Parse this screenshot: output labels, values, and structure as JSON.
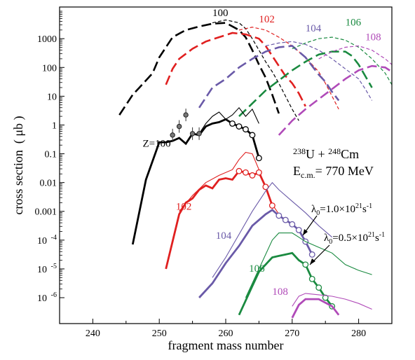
{
  "chart_data": {
    "type": "line",
    "xlabel": "fragment mass number",
    "ylabel": "cross section  ( μb )",
    "xlim": [
      235,
      285
    ],
    "ylim_log10": [
      -6.9,
      4.1
    ],
    "log_y": true,
    "x_ticks": [
      240,
      250,
      260,
      270,
      280
    ],
    "y_ticks": [
      {
        "exp": 3,
        "label": "1000"
      },
      {
        "exp": 2,
        "label": "100"
      },
      {
        "exp": 1,
        "label": "10"
      },
      {
        "exp": 0,
        "label": "1"
      },
      {
        "exp": -1,
        "label": "0.1"
      },
      {
        "exp": -2,
        "label": "0.01"
      },
      {
        "exp": -3,
        "label": "0.001"
      },
      {
        "exp": -4,
        "label": "10",
        "sup": "-4"
      },
      {
        "exp": -5,
        "label": "10",
        "sup": "-5"
      },
      {
        "exp": -6,
        "label": "10",
        "sup": "-6"
      }
    ],
    "reaction": {
      "a1": "238",
      "s1": "U",
      "plus": " + ",
      "a2": "248",
      "s2": "Cm"
    },
    "energy": {
      "E": "E",
      "sub": "c.m.",
      "rest": "= 770 MeV"
    },
    "annotations": {
      "lambda1": {
        "pre": "λ",
        "sub": "0",
        "mid": "=1.0×10",
        "sup": "21",
        "post": "s",
        "sup2": "-1"
      },
      "lambda2": {
        "pre": "λ",
        "sub": "0",
        "mid": "=0.5×10",
        "sup": "21",
        "post": "s",
        "sup2": "-1"
      }
    },
    "series": [
      {
        "name": "100",
        "color": "#000000",
        "label_primary": "100",
        "primary": [
          [
            244,
            0.35
          ],
          [
            246,
            1.05
          ],
          [
            247,
            1.3
          ],
          [
            249,
            1.8
          ],
          [
            250,
            2.35
          ],
          [
            251,
            2.7
          ],
          [
            252,
            3.05
          ],
          [
            254,
            3.3
          ],
          [
            256,
            3.42
          ],
          [
            258,
            3.52
          ],
          [
            260,
            3.55
          ],
          [
            262,
            3.3
          ],
          [
            263,
            3.05
          ],
          [
            264,
            2.6
          ],
          [
            265,
            2.1
          ],
          [
            266,
            1.65
          ],
          [
            267,
            1.05
          ],
          [
            268,
            0.4
          ]
        ],
        "secondary": [
          [
            258,
            3.55
          ],
          [
            260,
            3.65
          ],
          [
            262,
            3.55
          ],
          [
            263,
            3.35
          ],
          [
            264,
            3.0
          ],
          [
            265,
            2.6
          ],
          [
            266,
            2.2
          ],
          [
            267,
            1.85
          ],
          [
            268,
            1.45
          ],
          [
            269,
            1.0
          ],
          [
            270,
            0.55
          ],
          [
            271,
            0.15
          ]
        ]
      },
      {
        "name": "102",
        "color": "#e02020",
        "label_primary": "102",
        "primary": [
          [
            251,
            1.4
          ],
          [
            252,
            1.95
          ],
          [
            253,
            2.3
          ],
          [
            255,
            2.65
          ],
          [
            257,
            2.9
          ],
          [
            259,
            3.05
          ],
          [
            261,
            3.2
          ],
          [
            263,
            3.15
          ],
          [
            265,
            3.0
          ],
          [
            266,
            2.75
          ],
          [
            267,
            2.4
          ],
          [
            268,
            2.05
          ],
          [
            269,
            1.7
          ],
          [
            270,
            1.45
          ],
          [
            271,
            1.1
          ],
          [
            272,
            0.65
          ]
        ],
        "secondary": [
          [
            262,
            3.3
          ],
          [
            264,
            3.4
          ],
          [
            266,
            3.3
          ],
          [
            268,
            3.05
          ],
          [
            270,
            2.75
          ],
          [
            272,
            2.35
          ],
          [
            274,
            1.85
          ],
          [
            275,
            1.45
          ],
          [
            276,
            1.0
          ],
          [
            277,
            0.55
          ]
        ]
      },
      {
        "name": "104",
        "color": "#6a5aa8",
        "label_primary": "104",
        "primary": [
          [
            256,
            0.6
          ],
          [
            258,
            1.3
          ],
          [
            260,
            1.6
          ],
          [
            262,
            2.0
          ],
          [
            264,
            2.3
          ],
          [
            266,
            2.55
          ],
          [
            268,
            2.7
          ],
          [
            270,
            2.75
          ],
          [
            271,
            2.55
          ],
          [
            272,
            2.35
          ],
          [
            273,
            2.05
          ],
          [
            274,
            1.75
          ],
          [
            275,
            1.5
          ],
          [
            276,
            1.15
          ],
          [
            277,
            0.85
          ]
        ],
        "secondary": [
          [
            266,
            2.75
          ],
          [
            268,
            2.85
          ],
          [
            270,
            2.9
          ],
          [
            272,
            2.8
          ],
          [
            274,
            2.6
          ],
          [
            276,
            2.3
          ],
          [
            278,
            1.95
          ],
          [
            280,
            1.6
          ],
          [
            281,
            1.25
          ],
          [
            282,
            0.85
          ]
        ]
      },
      {
        "name": "106",
        "color": "#1a8a40",
        "label_primary": "106",
        "primary": [
          [
            262,
            0.3
          ],
          [
            264,
            0.75
          ],
          [
            266,
            1.2
          ],
          [
            268,
            1.55
          ],
          [
            270,
            1.9
          ],
          [
            272,
            2.2
          ],
          [
            274,
            2.45
          ],
          [
            276,
            2.55
          ],
          [
            278,
            2.55
          ],
          [
            279,
            2.4
          ],
          [
            280,
            2.1
          ],
          [
            281,
            1.7
          ],
          [
            282,
            1.3
          ]
        ],
        "secondary": [
          [
            270,
            2.65
          ],
          [
            272,
            2.85
          ],
          [
            274,
            3.0
          ],
          [
            276,
            3.05
          ],
          [
            278,
            2.95
          ],
          [
            280,
            2.7
          ],
          [
            282,
            2.3
          ],
          [
            284,
            1.8
          ],
          [
            285,
            1.4
          ]
        ]
      },
      {
        "name": "108",
        "color": "#b04ab8",
        "label_primary": "108",
        "primary": [
          [
            268,
            -0.35
          ],
          [
            270,
            0.15
          ],
          [
            272,
            0.55
          ],
          [
            274,
            0.9
          ],
          [
            276,
            1.25
          ],
          [
            278,
            1.6
          ],
          [
            280,
            1.9
          ],
          [
            282,
            2.05
          ],
          [
            284,
            2.0
          ],
          [
            285,
            1.85
          ]
        ],
        "secondary": [
          [
            274,
            2.3
          ],
          [
            276,
            2.55
          ],
          [
            278,
            2.7
          ],
          [
            280,
            2.75
          ],
          [
            282,
            2.6
          ],
          [
            284,
            2.3
          ],
          [
            285,
            2.1
          ]
        ]
      }
    ],
    "lower_series": [
      {
        "name": "Z=100",
        "color": "#000000",
        "thick": [
          [
            246,
            -4.15
          ],
          [
            248,
            -1.9
          ],
          [
            250,
            -0.6
          ],
          [
            251,
            -0.6
          ],
          [
            252,
            -0.55
          ],
          [
            253,
            -0.45
          ],
          [
            254,
            -0.65
          ],
          [
            255,
            -0.3
          ],
          [
            256,
            -0.35
          ],
          [
            257,
            -0.05
          ],
          [
            258,
            0.05
          ],
          [
            259,
            0.1
          ],
          [
            260,
            0.2
          ],
          [
            261,
            0.05
          ],
          [
            262,
            -0.05
          ],
          [
            263,
            -0.15
          ],
          [
            264,
            -0.35
          ],
          [
            265,
            -1.15
          ]
        ],
        "thin": [
          [
            256,
            -0.3
          ],
          [
            257,
            0.05
          ],
          [
            258,
            0.3
          ],
          [
            259,
            0.45
          ],
          [
            260,
            0.2
          ],
          [
            261,
            0.35
          ],
          [
            262,
            0.6
          ],
          [
            263,
            0.3
          ],
          [
            264,
            0.55
          ],
          [
            265,
            0.05
          ]
        ],
        "circles": [
          [
            261,
            0.05
          ],
          [
            262,
            -0.05
          ],
          [
            263,
            -0.15
          ],
          [
            264,
            -0.35
          ],
          [
            265,
            -1.15
          ]
        ],
        "data_points": [
          [
            252,
            -0.35
          ],
          [
            253,
            -0.05
          ],
          [
            254,
            0.35
          ],
          [
            255,
            -0.3
          ],
          [
            256,
            -0.3
          ]
        ]
      },
      {
        "name": "102",
        "color": "#e02020",
        "thick": [
          [
            251,
            -5.0
          ],
          [
            253,
            -3.1
          ],
          [
            254,
            -2.7
          ],
          [
            255,
            -2.55
          ],
          [
            256,
            -2.25
          ],
          [
            257,
            -2.1
          ],
          [
            258,
            -2.2
          ],
          [
            259,
            -1.9
          ],
          [
            260,
            -1.85
          ],
          [
            261,
            -1.9
          ],
          [
            262,
            -1.6
          ],
          [
            263,
            -1.65
          ],
          [
            264,
            -1.75
          ],
          [
            265,
            -1.65
          ],
          [
            266,
            -2.15
          ],
          [
            267,
            -2.8
          ]
        ],
        "thin": [
          [
            253,
            -3.0
          ],
          [
            255,
            -2.45
          ],
          [
            257,
            -2.0
          ],
          [
            259,
            -1.75
          ],
          [
            261,
            -1.55
          ],
          [
            262,
            -1.2
          ],
          [
            263,
            -0.95
          ],
          [
            264,
            -1.0
          ],
          [
            265,
            -1.55
          ],
          [
            266,
            -2.2
          ],
          [
            267,
            -2.75
          ],
          [
            268,
            -3.1
          ]
        ],
        "circles": [
          [
            262,
            -1.6
          ],
          [
            263,
            -1.65
          ],
          [
            264,
            -1.75
          ],
          [
            265,
            -1.65
          ],
          [
            266,
            -2.15
          ],
          [
            267,
            -2.8
          ]
        ]
      },
      {
        "name": "104",
        "color": "#6a5aa8",
        "thick": [
          [
            256,
            -6.0
          ],
          [
            258,
            -5.5
          ],
          [
            260,
            -4.8
          ],
          [
            262,
            -4.2
          ],
          [
            264,
            -3.5
          ],
          [
            266,
            -3.1
          ],
          [
            267,
            -2.95
          ],
          [
            268,
            -3.15
          ],
          [
            269,
            -3.3
          ],
          [
            270,
            -3.45
          ],
          [
            271,
            -3.65
          ],
          [
            272,
            -4.05
          ],
          [
            273,
            -4.5
          ]
        ],
        "thin": [
          [
            258,
            -5.3
          ],
          [
            260,
            -4.6
          ],
          [
            262,
            -3.8
          ],
          [
            264,
            -3.0
          ],
          [
            266,
            -2.3
          ],
          [
            267,
            -2.0
          ],
          [
            268,
            -2.25
          ],
          [
            270,
            -2.65
          ],
          [
            271,
            -2.85
          ],
          [
            272,
            -3.05
          ],
          [
            274,
            -3.5
          ],
          [
            276,
            -3.9
          ]
        ],
        "circles": [
          [
            268,
            -3.15
          ],
          [
            269,
            -3.3
          ],
          [
            270,
            -3.45
          ],
          [
            271,
            -3.65
          ],
          [
            272,
            -4.05
          ],
          [
            273,
            -4.5
          ]
        ]
      },
      {
        "name": "106",
        "color": "#1a8a40",
        "thick": [
          [
            262,
            -6.6
          ],
          [
            264,
            -5.6
          ],
          [
            265,
            -5.1
          ],
          [
            267,
            -4.6
          ],
          [
            268,
            -4.55
          ],
          [
            269,
            -4.5
          ],
          [
            270,
            -4.45
          ],
          [
            271,
            -4.7
          ],
          [
            272,
            -4.85
          ],
          [
            273,
            -5.35
          ],
          [
            274,
            -5.65
          ],
          [
            275,
            -6.0
          ],
          [
            276,
            -6.3
          ]
        ],
        "thin": [
          [
            263,
            -6.0
          ],
          [
            265,
            -5.0
          ],
          [
            267,
            -4.0
          ],
          [
            268,
            -3.75
          ],
          [
            270,
            -3.75
          ],
          [
            271,
            -3.9
          ],
          [
            272,
            -4.05
          ],
          [
            274,
            -4.25
          ],
          [
            276,
            -4.45
          ],
          [
            278,
            -4.85
          ],
          [
            280,
            -5.05
          ],
          [
            282,
            -5.2
          ]
        ],
        "circles": [
          [
            272,
            -4.85
          ],
          [
            273,
            -5.35
          ],
          [
            274,
            -5.65
          ],
          [
            275,
            -6.0
          ],
          [
            276,
            -6.3
          ]
        ]
      },
      {
        "name": "108",
        "color": "#b04ab8",
        "thick": [
          [
            270,
            -6.7
          ],
          [
            271,
            -6.25
          ],
          [
            272,
            -6.05
          ],
          [
            274,
            -6.05
          ],
          [
            276,
            -6.3
          ],
          [
            277,
            -6.6
          ]
        ],
        "thin": [
          [
            270,
            -6.3
          ],
          [
            271,
            -5.95
          ],
          [
            272,
            -5.85
          ],
          [
            274,
            -5.9
          ],
          [
            276,
            -5.95
          ],
          [
            278,
            -6.05
          ],
          [
            280,
            -6.2
          ],
          [
            282,
            -6.4
          ]
        ],
        "circles": []
      }
    ],
    "lower_labels": [
      {
        "series": "Z=100",
        "text": "Z=100"
      },
      {
        "series": "102",
        "text": "102"
      },
      {
        "series": "104",
        "text": "104"
      },
      {
        "series": "106",
        "text": "106"
      },
      {
        "series": "108",
        "text": "108"
      }
    ]
  }
}
